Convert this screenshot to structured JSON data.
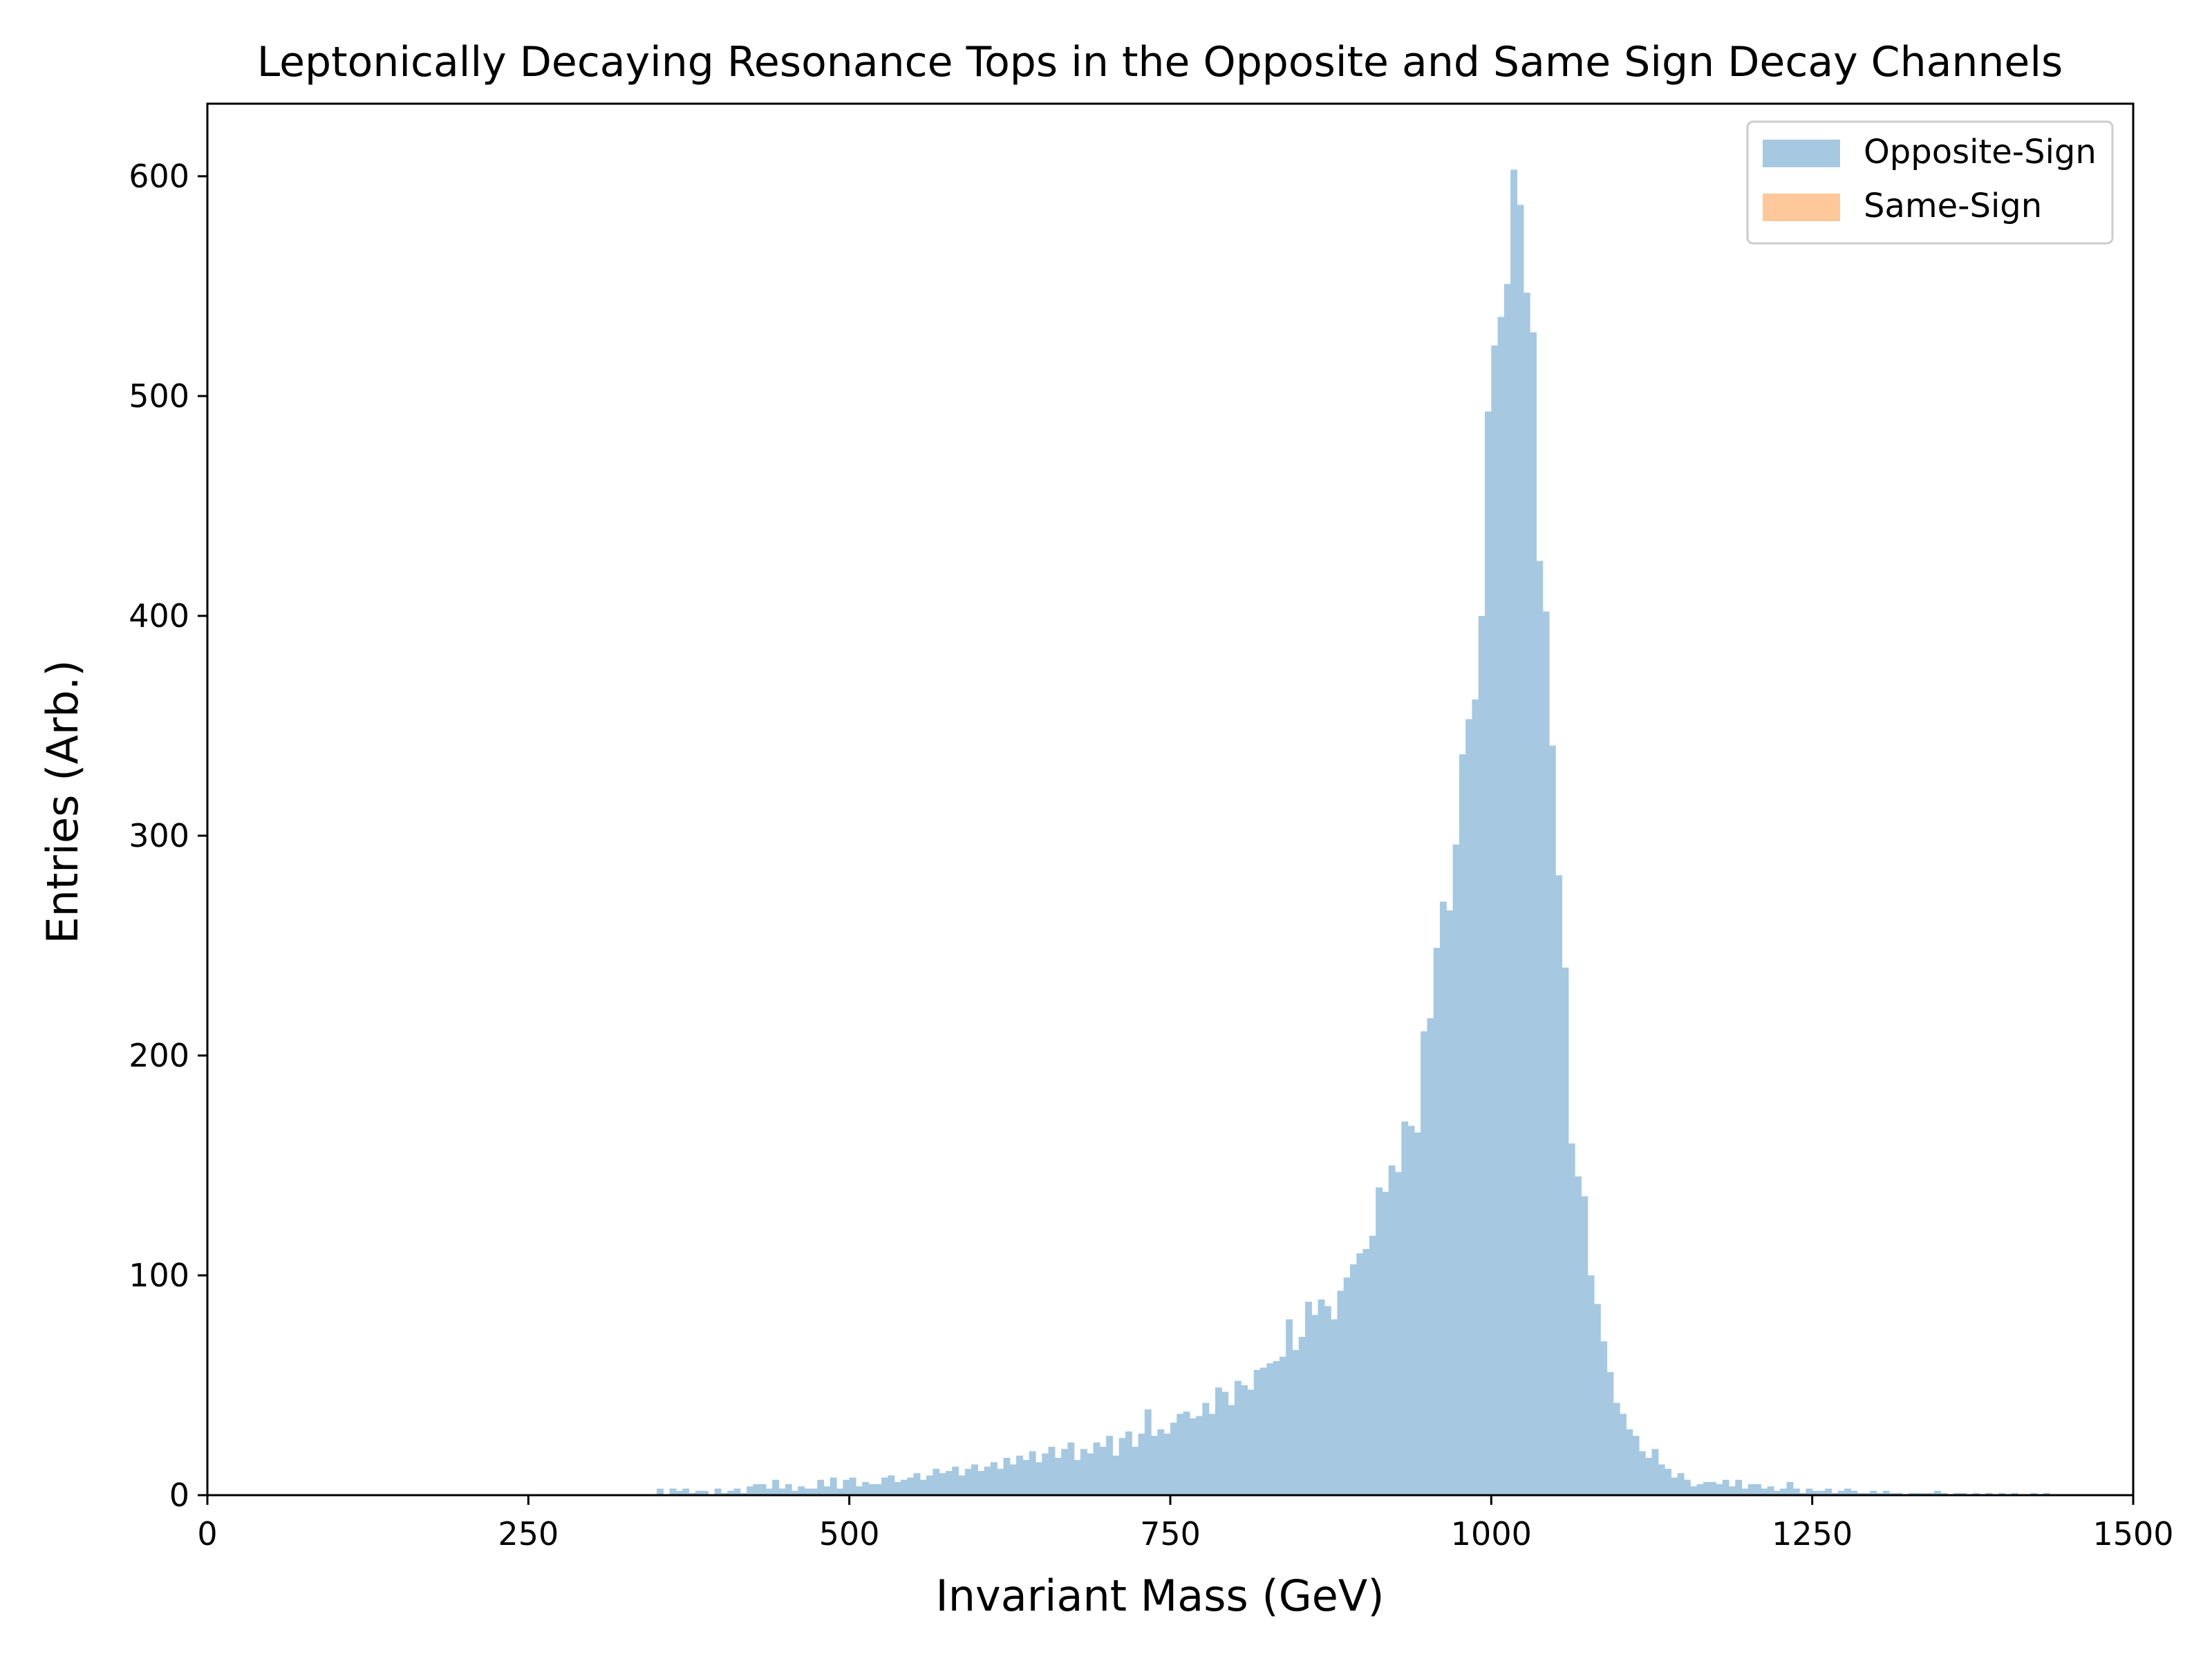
{
  "chart_data": {
    "type": "histogram",
    "title": "Leptonically Decaying Resonance Tops in the Opposite and Same Sign Decay Channels",
    "xlabel": "Invariant Mass (GeV)",
    "ylabel": "Entries (Arb.)",
    "xlim": [
      0,
      1500
    ],
    "ylim": [
      0,
      633
    ],
    "xticks": [
      0,
      250,
      500,
      750,
      1000,
      1250,
      1500
    ],
    "xtick_labels": [
      "0",
      "250",
      "500",
      "750",
      "1000",
      "1250",
      "1500"
    ],
    "yticks": [
      0,
      100,
      200,
      300,
      400,
      500,
      600
    ],
    "ytick_labels": [
      "0",
      "100",
      "200",
      "300",
      "400",
      "500",
      "600"
    ],
    "grid": false,
    "legend_position": "top-right",
    "bin_width": 5,
    "series": [
      {
        "name": "Opposite-Sign",
        "color": "#a6c8e0",
        "bins": [
          [
            350,
            3
          ],
          [
            355,
            0
          ],
          [
            360,
            3
          ],
          [
            365,
            2
          ],
          [
            370,
            3
          ],
          [
            375,
            1
          ],
          [
            380,
            2
          ],
          [
            385,
            2
          ],
          [
            390,
            0
          ],
          [
            395,
            3
          ],
          [
            400,
            1
          ],
          [
            405,
            2
          ],
          [
            410,
            3
          ],
          [
            415,
            1
          ],
          [
            420,
            4
          ],
          [
            425,
            5
          ],
          [
            430,
            5
          ],
          [
            435,
            3
          ],
          [
            440,
            7
          ],
          [
            445,
            3
          ],
          [
            450,
            5
          ],
          [
            455,
            2
          ],
          [
            460,
            4
          ],
          [
            465,
            3
          ],
          [
            470,
            3
          ],
          [
            475,
            7
          ],
          [
            480,
            4
          ],
          [
            485,
            8
          ],
          [
            490,
            3
          ],
          [
            495,
            7
          ],
          [
            500,
            8
          ],
          [
            505,
            4
          ],
          [
            510,
            6
          ],
          [
            515,
            5
          ],
          [
            520,
            5
          ],
          [
            525,
            8
          ],
          [
            530,
            9
          ],
          [
            535,
            6
          ],
          [
            540,
            7
          ],
          [
            545,
            8
          ],
          [
            550,
            10
          ],
          [
            555,
            7
          ],
          [
            560,
            9
          ],
          [
            565,
            12
          ],
          [
            570,
            10
          ],
          [
            575,
            11
          ],
          [
            580,
            13
          ],
          [
            585,
            9
          ],
          [
            590,
            12
          ],
          [
            595,
            14
          ],
          [
            600,
            11
          ],
          [
            605,
            13
          ],
          [
            610,
            15
          ],
          [
            615,
            12
          ],
          [
            620,
            17
          ],
          [
            625,
            14
          ],
          [
            630,
            18
          ],
          [
            635,
            16
          ],
          [
            640,
            20
          ],
          [
            645,
            15
          ],
          [
            650,
            19
          ],
          [
            655,
            22
          ],
          [
            660,
            17
          ],
          [
            665,
            21
          ],
          [
            670,
            24
          ],
          [
            675,
            16
          ],
          [
            680,
            21
          ],
          [
            685,
            19
          ],
          [
            690,
            24
          ],
          [
            695,
            22
          ],
          [
            700,
            27
          ],
          [
            705,
            18
          ],
          [
            710,
            26
          ],
          [
            715,
            29
          ],
          [
            720,
            22
          ],
          [
            725,
            28
          ],
          [
            730,
            39
          ],
          [
            735,
            27
          ],
          [
            740,
            30
          ],
          [
            745,
            28
          ],
          [
            750,
            33
          ],
          [
            755,
            37
          ],
          [
            760,
            38
          ],
          [
            765,
            35
          ],
          [
            770,
            36
          ],
          [
            775,
            42
          ],
          [
            780,
            37
          ],
          [
            785,
            49
          ],
          [
            790,
            47
          ],
          [
            795,
            41
          ],
          [
            800,
            52
          ],
          [
            805,
            50
          ],
          [
            810,
            48
          ],
          [
            815,
            57
          ],
          [
            820,
            58
          ],
          [
            825,
            60
          ],
          [
            830,
            61
          ],
          [
            835,
            63
          ],
          [
            840,
            80
          ],
          [
            845,
            66
          ],
          [
            850,
            72
          ],
          [
            855,
            88
          ],
          [
            860,
            82
          ],
          [
            865,
            89
          ],
          [
            870,
            86
          ],
          [
            875,
            80
          ],
          [
            880,
            93
          ],
          [
            885,
            99
          ],
          [
            890,
            105
          ],
          [
            895,
            110
          ],
          [
            900,
            112
          ],
          [
            905,
            118
          ],
          [
            910,
            140
          ],
          [
            915,
            138
          ],
          [
            920,
            150
          ],
          [
            925,
            147
          ],
          [
            930,
            170
          ],
          [
            935,
            168
          ],
          [
            940,
            165
          ],
          [
            945,
            211
          ],
          [
            950,
            217
          ],
          [
            955,
            249
          ],
          [
            960,
            270
          ],
          [
            965,
            266
          ],
          [
            970,
            296
          ],
          [
            975,
            337
          ],
          [
            980,
            353
          ],
          [
            985,
            362
          ],
          [
            990,
            400
          ],
          [
            995,
            493
          ],
          [
            1000,
            523
          ],
          [
            1005,
            536
          ],
          [
            1010,
            551
          ],
          [
            1015,
            603
          ],
          [
            1020,
            587
          ],
          [
            1025,
            547
          ],
          [
            1030,
            529
          ],
          [
            1035,
            425
          ],
          [
            1040,
            402
          ],
          [
            1045,
            341
          ],
          [
            1050,
            282
          ],
          [
            1055,
            240
          ],
          [
            1060,
            160
          ],
          [
            1065,
            145
          ],
          [
            1070,
            136
          ],
          [
            1075,
            100
          ],
          [
            1080,
            87
          ],
          [
            1085,
            70
          ],
          [
            1090,
            56
          ],
          [
            1095,
            42
          ],
          [
            1100,
            37
          ],
          [
            1105,
            30
          ],
          [
            1110,
            27
          ],
          [
            1115,
            20
          ],
          [
            1120,
            17
          ],
          [
            1125,
            21
          ],
          [
            1130,
            14
          ],
          [
            1135,
            12
          ],
          [
            1140,
            8
          ],
          [
            1145,
            10
          ],
          [
            1150,
            7
          ],
          [
            1155,
            4
          ],
          [
            1160,
            5
          ],
          [
            1165,
            6
          ],
          [
            1170,
            6
          ],
          [
            1175,
            5
          ],
          [
            1180,
            7
          ],
          [
            1185,
            4
          ],
          [
            1190,
            7
          ],
          [
            1195,
            3
          ],
          [
            1200,
            5
          ],
          [
            1205,
            5
          ],
          [
            1210,
            3
          ],
          [
            1215,
            4
          ],
          [
            1220,
            2
          ],
          [
            1225,
            3
          ],
          [
            1230,
            6
          ],
          [
            1235,
            3
          ],
          [
            1240,
            1
          ],
          [
            1245,
            3
          ],
          [
            1250,
            2
          ],
          [
            1255,
            2
          ],
          [
            1260,
            3
          ],
          [
            1265,
            1
          ],
          [
            1270,
            2
          ],
          [
            1275,
            3
          ],
          [
            1280,
            2
          ],
          [
            1285,
            1
          ],
          [
            1290,
            1
          ],
          [
            1295,
            2
          ],
          [
            1300,
            1
          ],
          [
            1305,
            2
          ],
          [
            1310,
            1
          ],
          [
            1315,
            1
          ],
          [
            1320,
            0
          ],
          [
            1325,
            1
          ],
          [
            1330,
            1
          ],
          [
            1335,
            1
          ],
          [
            1340,
            1
          ],
          [
            1345,
            2
          ],
          [
            1350,
            1
          ],
          [
            1355,
            0
          ],
          [
            1360,
            1
          ],
          [
            1365,
            1
          ],
          [
            1370,
            0
          ],
          [
            1375,
            1
          ],
          [
            1380,
            0
          ],
          [
            1385,
            1
          ],
          [
            1390,
            0
          ],
          [
            1395,
            1
          ],
          [
            1400,
            0
          ],
          [
            1405,
            1
          ],
          [
            1410,
            0
          ],
          [
            1415,
            0
          ],
          [
            1420,
            1
          ],
          [
            1425,
            0
          ],
          [
            1430,
            1
          ]
        ]
      },
      {
        "name": "Same-Sign",
        "color": "#ffc89a",
        "bins": []
      }
    ]
  }
}
